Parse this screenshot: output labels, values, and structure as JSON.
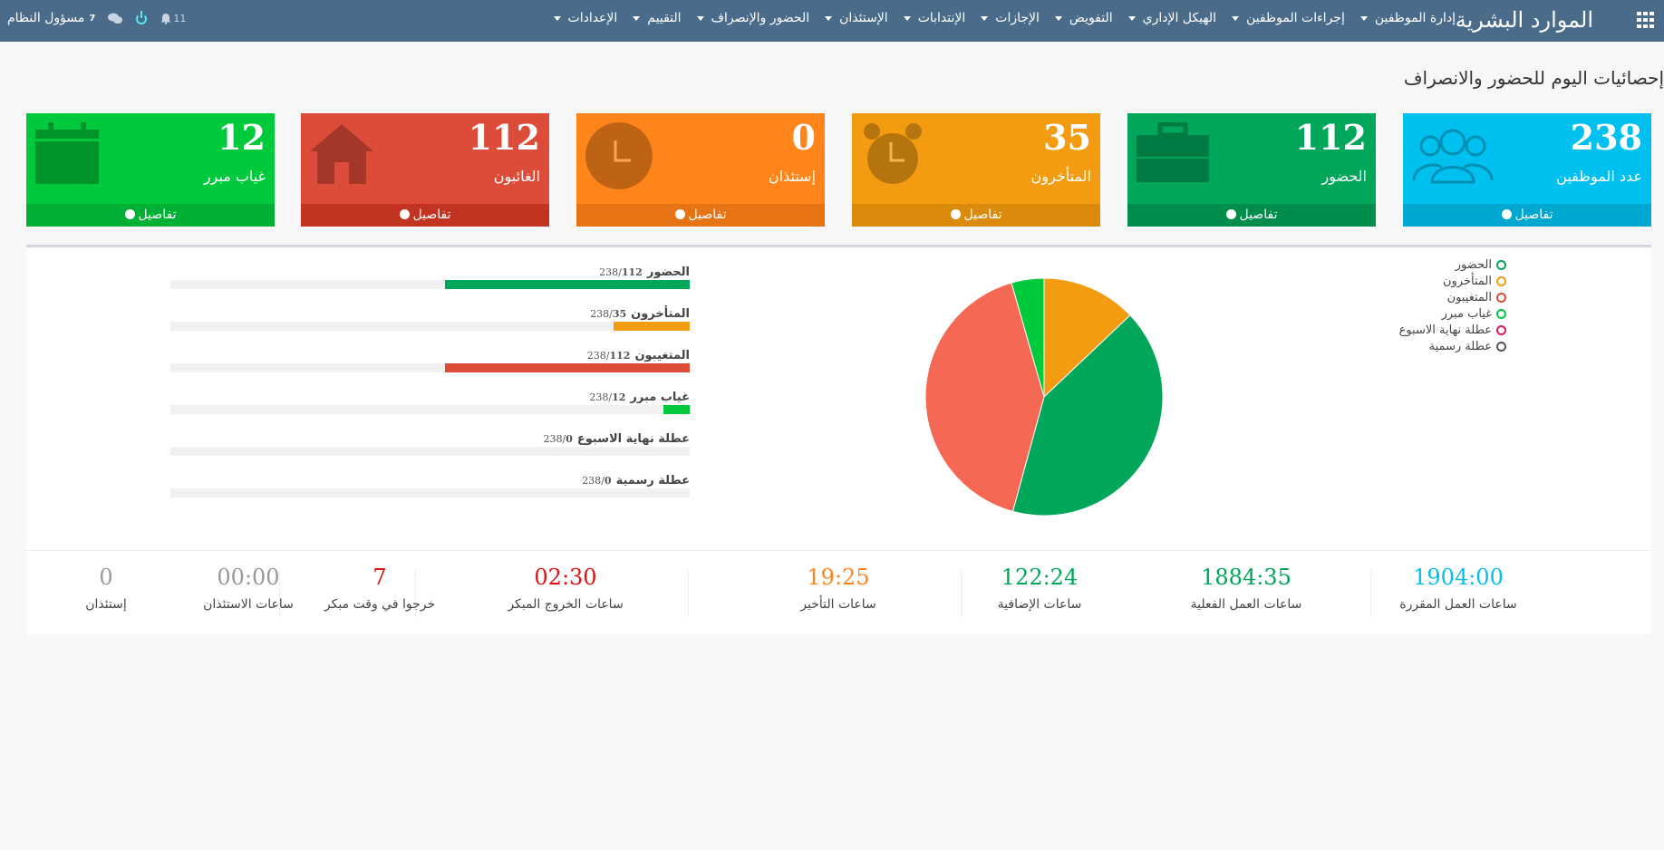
{
  "app": {
    "brand": "الموارد البشرية",
    "user": "مسؤول النظام",
    "user_badge": "7",
    "notifications": "11"
  },
  "menu": [
    {
      "label": "إدارة الموظفين"
    },
    {
      "label": "إجراءات الموظفين"
    },
    {
      "label": "الهيكل الإداري"
    },
    {
      "label": "التفويض"
    },
    {
      "label": "الإجازات"
    },
    {
      "label": "الإنتدابات"
    },
    {
      "label": "الإستئذان"
    },
    {
      "label": "الحضور والإنصراف"
    },
    {
      "label": "التقييم"
    },
    {
      "label": "الإعدادات"
    }
  ],
  "page_title": "إحصائيات اليوم للحضور والانصراف",
  "details_label": "تفاصيل",
  "tiles": [
    {
      "value": "238",
      "label": "عدد الموظفين",
      "color": "#00c0ef",
      "footer": "#00a7d0",
      "icon": "users-icon"
    },
    {
      "value": "112",
      "label": "الحضور",
      "color": "#00a65a",
      "footer": "#008d4c",
      "icon": "briefcase-icon"
    },
    {
      "value": "35",
      "label": "المتأخرون",
      "color": "#f39c12",
      "footer": "#db8b0b",
      "icon": "alarm-clock-icon"
    },
    {
      "value": "0",
      "label": "إستئذان",
      "color": "#ff851b",
      "footer": "#e67414",
      "icon": "clock-icon"
    },
    {
      "value": "112",
      "label": "الغائبون",
      "color": "#dd4b39",
      "footer": "#c23321",
      "icon": "home-icon"
    },
    {
      "value": "12",
      "label": "غياب مبرر",
      "color": "#00ca3c",
      "footer": "#00b034",
      "icon": "calendar-icon"
    }
  ],
  "progress": [
    {
      "label": "الحضور",
      "count": "112",
      "total": "238",
      "fraction": 0.4706,
      "color": "#00a65a"
    },
    {
      "label": "المتأخرون",
      "count": "35",
      "total": "238",
      "fraction": 0.1471,
      "color": "#f39c12"
    },
    {
      "label": "المتغيبون",
      "count": "112",
      "total": "238",
      "fraction": 0.4706,
      "color": "#dd4b39"
    },
    {
      "label": "غياب مبرر",
      "count": "12",
      "total": "238",
      "fraction": 0.0504,
      "color": "#00ca3c"
    },
    {
      "label": "عطلة نهاية الاسبوع",
      "count": "0",
      "total": "238",
      "fraction": 0,
      "color": "#d81b60"
    },
    {
      "label": "عطلة رسمية",
      "count": "0",
      "total": "238",
      "fraction": 0,
      "color": "#555555"
    }
  ],
  "legend": [
    {
      "label": "الحضور",
      "color": "#00a65a"
    },
    {
      "label": "المتأخرون",
      "color": "#f39c12"
    },
    {
      "label": "المتغيبون",
      "color": "#dd4b39"
    },
    {
      "label": "غياب مبرر",
      "color": "#00ca3c"
    },
    {
      "label": "عطلة نهاية الاسبوع",
      "color": "#d81b60"
    },
    {
      "label": "عطلة رسمية",
      "color": "#555555"
    }
  ],
  "chart_data": {
    "type": "pie",
    "categories": [
      "المتأخرون",
      "الحضور",
      "المتغيبون",
      "غياب مبرر"
    ],
    "values": [
      35,
      112,
      112,
      12
    ],
    "colors": [
      "#f39c12",
      "#00a65a",
      "#f56954",
      "#00ca3c"
    ]
  },
  "metrics": [
    {
      "value": "1904:00",
      "label": "ساعات العمل المقررة",
      "color": "#00c0ef"
    },
    {
      "value": "1884:35",
      "label": "ساعات العمل الفعلية",
      "color": "#00a65a"
    },
    {
      "value": "122:24",
      "label": "ساعات الإضافية",
      "color": "#00a65a"
    },
    {
      "value": "19:25",
      "label": "ساعات التأخير",
      "color": "#ff851b"
    },
    {
      "value": "02:30",
      "label": "ساعات الخروج المبكر",
      "color": "#dd1111"
    },
    {
      "value": "7",
      "label": "خرجوا في وقت مبكر",
      "color": "#dd1111"
    },
    {
      "value": "00:00",
      "label": "ساعات الاستئذان",
      "color": "#999999"
    },
    {
      "value": "0",
      "label": "إستئذان",
      "color": "#999999"
    }
  ]
}
